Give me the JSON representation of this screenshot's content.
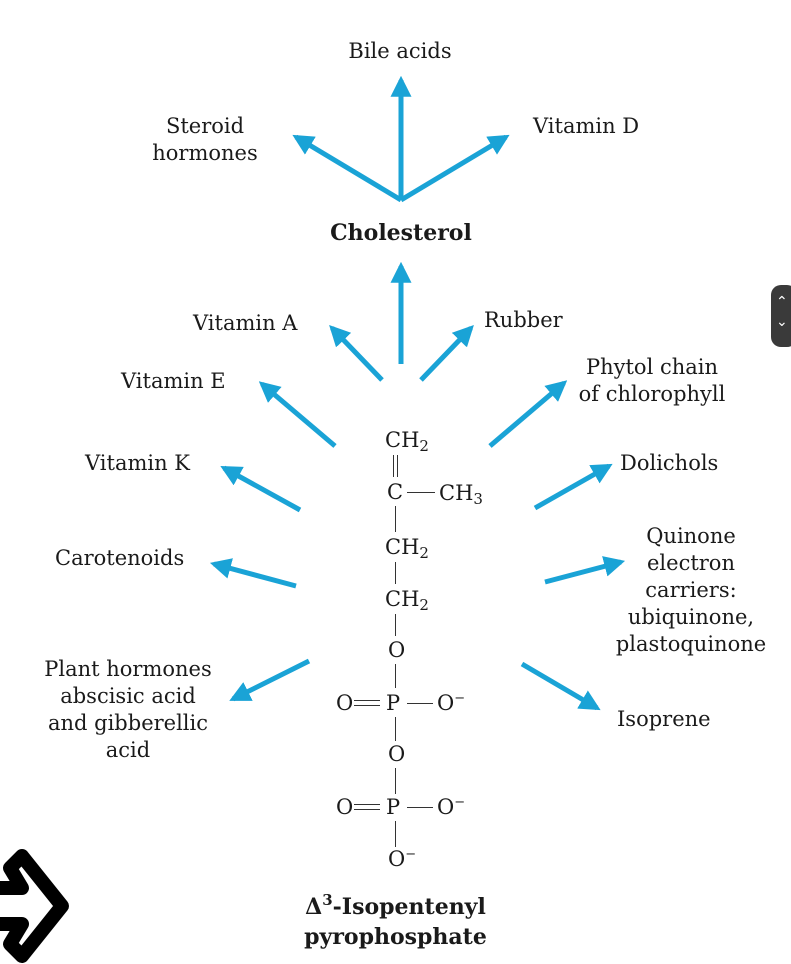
{
  "arrow_color": "#1aa3d6",
  "products": {
    "bile_acids": "Bile acids",
    "steroid_hormones": "Steroid\nhormones",
    "vitamin_d": "Vitamin D",
    "cholesterol": "Cholesterol",
    "vitamin_a": "Vitamin A",
    "rubber": "Rubber",
    "vitamin_e": "Vitamin E",
    "phytol": "Phytol chain\nof chlorophyll",
    "vitamin_k": "Vitamin K",
    "dolichols": "Dolichols",
    "carotenoids": "Carotenoids",
    "quinone": "Quinone\nelectron\ncarriers:\nubiquinone,\nplastoquinone",
    "plant_hormones": "Plant hormones\nabscisic acid\nand gibberellic\nacid",
    "isoprene": "Isoprene"
  },
  "molecule": {
    "ch2_top": "CH",
    "c": "C",
    "ch3": "CH",
    "ch2_a": "CH",
    "ch2_b": "CH",
    "o1": "O",
    "p1": "P",
    "o_left1": "O",
    "o_minus1": "O",
    "o2": "O",
    "p2": "P",
    "o_left2": "O",
    "o_minus2": "O",
    "o_bottom": "O",
    "sub2": "2",
    "sub3": "3",
    "minus": "−"
  },
  "compound": {
    "delta": "Δ",
    "superscript": "3",
    "name_rest": "-Isopentenyl",
    "line2": "pyrophosphate"
  },
  "scroll_widget": {
    "up": "⌃",
    "down": "⌄"
  }
}
